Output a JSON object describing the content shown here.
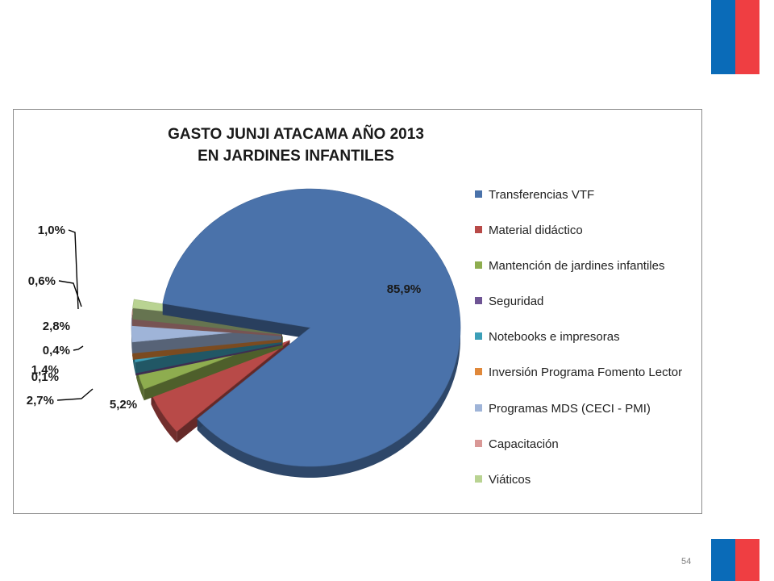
{
  "colors": {
    "flag_blue": "#0a6bb8",
    "flag_red": "#ef3e42"
  },
  "page_number": "54",
  "chart_data": {
    "type": "pie",
    "title_lines": [
      "GASTO JUNJI ATACAMA AÑO 2013",
      "EN JARDINES INFANTILES"
    ],
    "legend_position": "right",
    "slices": [
      {
        "label": "Transferencias VTF",
        "value": 85.9,
        "data_label": "85,9%",
        "color": "#4a72aa"
      },
      {
        "label": "Material didáctico",
        "value": 5.2,
        "data_label": "5,2%",
        "color": "#b84a48"
      },
      {
        "label": "Mantención de jardines infantiles",
        "value": 2.7,
        "data_label": "2,7%",
        "color": "#8ead4f"
      },
      {
        "label": "Seguridad",
        "value": 0.1,
        "data_label": "0,1%",
        "color": "#6e5494"
      },
      {
        "label": "Notebooks e impresoras",
        "value": 1.4,
        "data_label": "1,4%",
        "color": "#3c9fb8"
      },
      {
        "label": "Inversión Programa Fomento Lector",
        "value": 0.4,
        "data_label": "0,4%",
        "color": "#e0883a"
      },
      {
        "label": "Programas MDS (CECI - PMI)",
        "value": 2.8,
        "data_label": "2,8%",
        "color": "#9fb4d8"
      },
      {
        "label": "Capacitación",
        "value": 0.6,
        "data_label": "0,6%",
        "color": "#d99896"
      },
      {
        "label": "Viáticos",
        "value": 1.0,
        "data_label": "1,0%",
        "color": "#b9d392"
      }
    ]
  }
}
